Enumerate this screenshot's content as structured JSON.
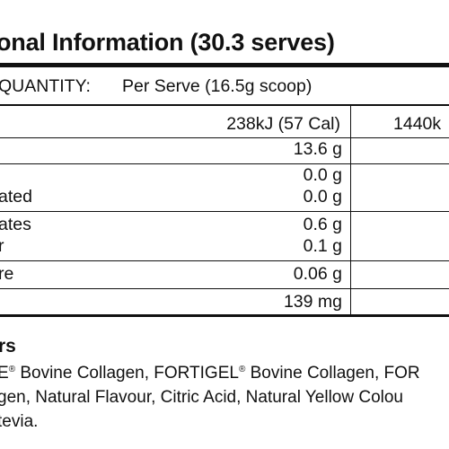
{
  "panel": {
    "title": "onal Information (30.3 serves)",
    "header_left": "QUANTITY:",
    "header_per_serve": "Per Serve (16.5g scoop)"
  },
  "rows": [
    {
      "label": "",
      "per_serve": "238kJ (57 Cal)",
      "per_100": "1440k"
    },
    {
      "label": "",
      "per_serve": "13.6 g"
    },
    {
      "label": "",
      "per_serve": "0.0 g"
    },
    {
      "label": "ated",
      "per_serve": "0.0 g"
    },
    {
      "label": "ates",
      "per_serve": "0.6 g"
    },
    {
      "label": "r",
      "per_serve": "0.1 g"
    },
    {
      "label": "re",
      "per_serve": "0.06 g"
    },
    {
      "label": "",
      "per_serve": "139 mg"
    }
  ],
  "ingredients": {
    "heading": "rs",
    "line1_part1": "E",
    "reg_mark": "®",
    "line1_part2": " Bovine Collagen, FORTIGEL",
    "line1_part3": " Bovine Collagen, FOR",
    "line2": "gen, Natural Flavour, Citric Acid, Natural Yellow Colou",
    "line3": "tevia."
  }
}
